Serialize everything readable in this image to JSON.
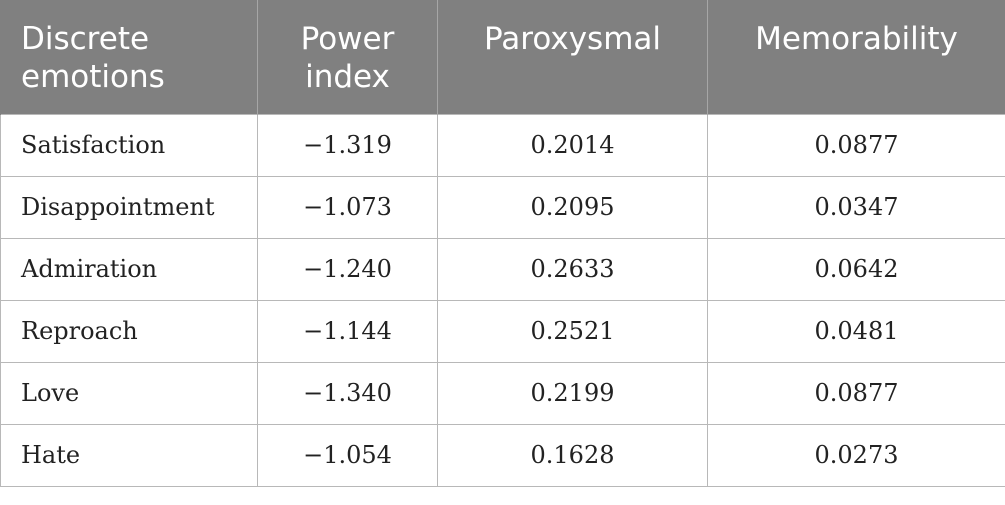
{
  "table": {
    "headers": [
      "Discrete emotions",
      "Power index",
      "Paroxysmal",
      "Memorability"
    ],
    "rows": [
      [
        "Satisfaction",
        "−1.319",
        "0.2014",
        "0.0877"
      ],
      [
        "Disappointment",
        "−1.073",
        "0.2095",
        "0.0347"
      ],
      [
        "Admiration",
        "−1.240",
        "0.2633",
        "0.0642"
      ],
      [
        "Reproach",
        "−1.144",
        "0.2521",
        "0.0481"
      ],
      [
        "Love",
        "−1.340",
        "0.2199",
        "0.0877"
      ],
      [
        "Hate",
        "−1.054",
        "0.1628",
        "0.0273"
      ]
    ]
  },
  "colors": {
    "header_bg": "#808080",
    "header_text": "#ffffff",
    "border": "#b8b8b8"
  }
}
